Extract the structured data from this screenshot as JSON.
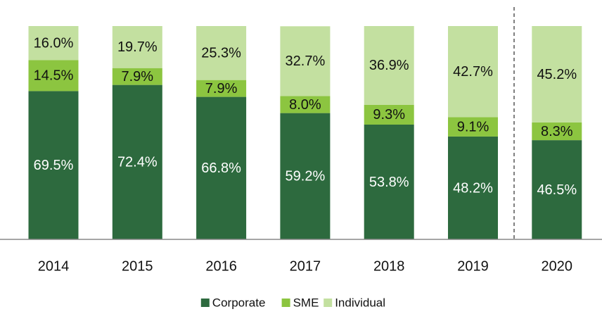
{
  "chart_data": {
    "type": "stacked_bar",
    "categories": [
      "2014",
      "2015",
      "2016",
      "2017",
      "2018",
      "2019",
      "2020"
    ],
    "series": [
      {
        "name": "Corporate",
        "color": "#2d6a3e",
        "values": [
          69.5,
          72.4,
          66.8,
          59.2,
          53.8,
          48.2,
          46.5
        ],
        "value_labels": [
          "69.5%",
          "72.4%",
          "66.8%",
          "59.2%",
          "53.8%",
          "48.2%",
          "46.5%"
        ]
      },
      {
        "name": "SME",
        "color": "#8cc540",
        "values": [
          14.5,
          7.9,
          7.9,
          8.0,
          9.3,
          9.1,
          8.3
        ],
        "value_labels": [
          "14.5%",
          "7.9%",
          "7.9%",
          "8.0%",
          "9.3%",
          "9.1%",
          "8.3%"
        ]
      },
      {
        "name": "Individual",
        "color": "#c3e0a0",
        "values": [
          16.0,
          19.7,
          25.3,
          32.7,
          36.9,
          42.7,
          45.2
        ],
        "value_labels": [
          "16.0%",
          "19.7%",
          "25.3%",
          "32.7%",
          "36.9%",
          "42.7%",
          "45.2%"
        ]
      }
    ],
    "ylim": [
      0,
      100
    ],
    "legend": "bottom"
  }
}
